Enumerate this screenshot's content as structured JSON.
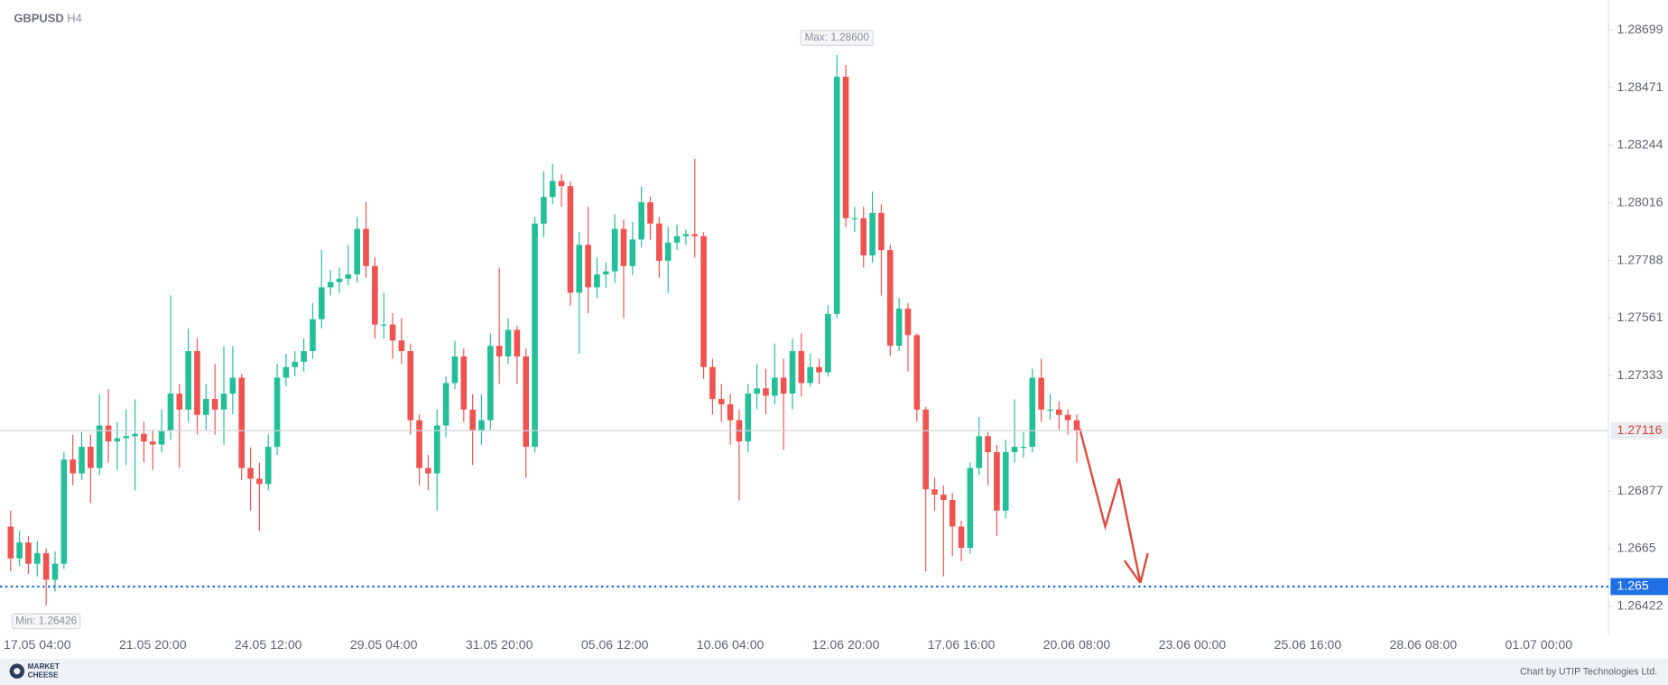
{
  "chart_data": {
    "type": "candlestick",
    "symbol": "GBPUSD",
    "timeframe": "H4",
    "up_color": "#22bf99",
    "down_color": "#ef5350",
    "ylim": [
      1.26317,
      1.28817
    ],
    "yticks": [
      1.28699,
      1.28471,
      1.28244,
      1.28016,
      1.27788,
      1.27561,
      1.27333,
      1.26877,
      1.2665,
      1.26422
    ],
    "current_price": 1.27116,
    "level": 1.265,
    "level_color": "#1f6fe5",
    "max_label": "Max: 1.28600",
    "min_label": "Min: 1.26426",
    "credit": "Chart by UTIP Technologies Ltd.",
    "logo": [
      "MARKET",
      "CHEESE"
    ],
    "categories": [
      null,
      null,
      null,
      "17.05 04:00",
      null,
      null,
      null,
      null,
      null,
      null,
      null,
      null,
      null,
      null,
      null,
      null,
      "21.05 20:00",
      null,
      null,
      null,
      null,
      null,
      null,
      null,
      null,
      null,
      null,
      null,
      null,
      "24.05 12:00",
      null,
      null,
      null,
      null,
      null,
      null,
      null,
      null,
      null,
      null,
      null,
      null,
      "29.05 04:00",
      null,
      null,
      null,
      null,
      null,
      null,
      null,
      null,
      null,
      null,
      null,
      null,
      "31.05 20:00",
      null,
      null,
      null,
      null,
      null,
      null,
      null,
      null,
      null,
      null,
      null,
      null,
      "05.06 12:00",
      null,
      null,
      null,
      null,
      null,
      null,
      null,
      null,
      null,
      null,
      null,
      null,
      "10.06 04:00",
      null,
      null,
      null,
      null,
      null,
      null,
      null,
      null,
      null,
      null,
      null,
      null,
      "12.06 20:00",
      null,
      null,
      null,
      null,
      null,
      null,
      null,
      null,
      null,
      null,
      null,
      null,
      "17.06 16:00",
      null,
      null,
      null,
      null,
      null,
      null,
      null,
      null,
      null,
      null,
      null,
      null,
      "20.06 08:00",
      null,
      null,
      null,
      null,
      null,
      null,
      null,
      null,
      null,
      null,
      null,
      null,
      "23.06 00:00",
      null,
      null,
      null,
      null,
      null,
      null,
      null,
      null,
      null,
      null,
      null,
      null,
      "25.06 16:00",
      null,
      null,
      null,
      null,
      null,
      null,
      null,
      null,
      null,
      null,
      null,
      null,
      "28.06 08:00",
      null,
      null,
      null,
      null,
      null,
      null,
      null,
      null,
      null,
      null,
      null,
      null,
      "01.07 00:00",
      null,
      null,
      null,
      null,
      null,
      null,
      null
    ],
    "open": [
      1.26737,
      1.26611,
      1.26674,
      1.2659,
      1.26632,
      1.26527,
      1.2659,
      1.27002,
      1.26947,
      1.27052,
      1.26968,
      1.27136,
      1.27073,
      1.27086,
      1.27094,
      1.27103,
      1.27073,
      1.27061,
      1.27115,
      1.27262,
      1.27199,
      1.2743,
      1.27178,
      1.27241,
      1.27199,
      1.27262,
      1.27325,
      1.26968,
      1.26926,
      1.26905,
      1.27052,
      1.27325,
      1.27367,
      1.27388,
      1.2743,
      1.27556,
      1.27682,
      1.27703,
      1.27716,
      1.27733,
      1.27913,
      1.27766,
      1.27535,
      1.27535,
      1.27472,
      1.2743,
      1.27157,
      1.26968,
      1.26947,
      1.27136,
      1.27304,
      1.27409,
      1.27199,
      1.27115,
      1.27157,
      1.27451,
      1.27409,
      1.27514,
      1.27409,
      1.27052,
      1.27934,
      1.28039,
      1.28102,
      1.28082,
      1.27661,
      1.2785,
      1.27682,
      1.27733,
      1.27745,
      1.27913,
      1.27766,
      1.27871,
      1.28018,
      1.27934,
      1.27787,
      1.27859,
      1.27884,
      1.27892,
      1.27884,
      1.27367,
      1.27241,
      1.2722,
      1.27157,
      1.27073,
      1.27262,
      1.27283,
      1.27254,
      1.27325,
      1.27262,
      1.2743,
      1.27304,
      1.27367,
      1.27346,
      1.27577,
      1.28514,
      1.27955,
      1.27955,
      1.27808,
      1.27976,
      1.27829,
      1.27451,
      1.27598,
      1.27493,
      1.27199,
      1.26884,
      1.26863,
      1.26842,
      1.26737,
      1.26653,
      1.26968,
      1.27094,
      1.27031,
      1.268,
      1.27031,
      1.27052,
      1.27052,
      1.27325,
      1.27199,
      1.27199,
      1.27178,
      1.27157,
      null,
      null,
      null,
      null,
      null,
      null,
      null,
      null,
      null,
      null,
      null,
      null,
      null,
      null,
      null,
      null,
      null,
      null,
      null,
      null,
      null,
      null,
      null,
      null,
      null,
      null,
      null,
      null,
      null,
      null,
      null,
      null,
      null,
      null,
      null,
      null,
      null,
      null,
      null,
      null,
      null,
      null,
      null,
      null,
      null,
      null,
      null,
      null,
      null,
      null,
      null,
      null,
      null,
      null,
      null,
      null,
      null,
      null,
      null
    ],
    "high": [
      1.268,
      1.2672,
      1.267,
      1.2668,
      1.2665,
      1.2664,
      1.2703,
      1.271,
      1.2711,
      1.271,
      1.2726,
      1.2728,
      1.2715,
      1.272,
      1.2724,
      1.2715,
      1.2712,
      1.272,
      1.2765,
      1.273,
      1.2752,
      1.2748,
      1.273,
      1.2738,
      1.2745,
      1.2745,
      1.2734,
      1.2705,
      1.2699,
      1.271,
      1.2738,
      1.2742,
      1.2743,
      1.2748,
      1.2762,
      1.2783,
      1.2775,
      1.2776,
      1.2785,
      1.2796,
      1.2802,
      1.278,
      1.2766,
      1.2758,
      1.2756,
      1.2746,
      1.2718,
      1.2702,
      1.272,
      1.2733,
      1.2747,
      1.2744,
      1.2726,
      1.2726,
      1.275,
      1.2776,
      1.2756,
      1.2753,
      1.2744,
      1.2796,
      1.2814,
      1.2817,
      1.2813,
      1.281,
      1.279,
      1.28,
      1.278,
      1.2778,
      1.2797,
      1.2795,
      1.2794,
      1.2808,
      1.2804,
      1.2796,
      1.2792,
      1.2793,
      1.2791,
      1.2819,
      1.279,
      1.274,
      1.273,
      1.2726,
      1.272,
      1.273,
      1.2738,
      1.2736,
      1.2746,
      1.274,
      1.2748,
      1.275,
      1.2742,
      1.274,
      1.2761,
      1.286,
      1.2856,
      1.28,
      1.28,
      1.2806,
      1.2801,
      1.2785,
      1.2764,
      1.2762,
      1.275,
      1.2721,
      1.2693,
      1.269,
      1.2687,
      1.2676,
      1.2699,
      1.2717,
      1.2711,
      1.2706,
      1.2708,
      1.2724,
      1.2711,
      1.2736,
      1.274,
      1.2726,
      1.2723,
      1.272,
      1.2718,
      null,
      null,
      null,
      null,
      null,
      null,
      null,
      null,
      null,
      null,
      null,
      null,
      null,
      null,
      null,
      null,
      null,
      null,
      null,
      null,
      null,
      null,
      null,
      null,
      null,
      null,
      null,
      null,
      null,
      null,
      null,
      null,
      null,
      null,
      null,
      null,
      null,
      null,
      null,
      null,
      null,
      null,
      null,
      null,
      null,
      null,
      null,
      null,
      null,
      null,
      null,
      null,
      null,
      null,
      null,
      null,
      null,
      null,
      null
    ],
    "low": [
      1.2656,
      1.2658,
      1.2655,
      1.2654,
      1.26426,
      1.2648,
      1.2657,
      1.269,
      1.2692,
      1.2683,
      1.2694,
      1.2699,
      1.2696,
      1.2698,
      1.2688,
      1.2699,
      1.2696,
      1.2703,
      1.2708,
      1.2697,
      1.2715,
      1.271,
      1.2712,
      1.271,
      1.2706,
      1.2718,
      1.2692,
      1.268,
      1.2672,
      1.2688,
      1.2702,
      1.2729,
      1.2733,
      1.2735,
      1.274,
      1.2752,
      1.2765,
      1.2766,
      1.2769,
      1.277,
      1.2772,
      1.2748,
      1.2748,
      1.274,
      1.2738,
      1.271,
      1.269,
      1.2688,
      1.268,
      1.2709,
      1.2728,
      1.2715,
      1.2698,
      1.2706,
      1.2712,
      1.273,
      1.2738,
      1.273,
      1.2693,
      1.2703,
      1.2788,
      1.2801,
      1.28,
      1.2761,
      1.2742,
      1.2758,
      1.2764,
      1.2768,
      1.277,
      1.2756,
      1.2773,
      1.2784,
      1.2787,
      1.2772,
      1.2766,
      1.2783,
      1.2785,
      1.278,
      1.2732,
      1.2718,
      1.2715,
      1.2706,
      1.2684,
      1.2703,
      1.272,
      1.2718,
      1.2722,
      1.2704,
      1.272,
      1.2725,
      1.2729,
      1.273,
      1.2733,
      1.2756,
      1.2792,
      1.279,
      1.2776,
      1.2778,
      1.2765,
      1.2741,
      1.2743,
      1.2735,
      1.2715,
      1.2656,
      1.268,
      1.2654,
      1.2662,
      1.266,
      1.2663,
      1.2694,
      1.269,
      1.267,
      1.2677,
      1.2699,
      1.2701,
      1.2703,
      1.2715,
      1.2716,
      1.2712,
      1.271,
      1.2699,
      null,
      null,
      null,
      null,
      null,
      null,
      null,
      null,
      null,
      null,
      null,
      null,
      null,
      null,
      null,
      null,
      null,
      null,
      null,
      null,
      null,
      null,
      null,
      null,
      null,
      null,
      null,
      null,
      null,
      null,
      null,
      null,
      null,
      null,
      null,
      null,
      null,
      null,
      null,
      null,
      null,
      null,
      null,
      null,
      null,
      null,
      null,
      null,
      null,
      null,
      null,
      null,
      null,
      null,
      null,
      null,
      null,
      null,
      null
    ],
    "close": [
      1.26611,
      1.26674,
      1.2659,
      1.26632,
      1.26527,
      1.2659,
      1.27002,
      1.26947,
      1.27052,
      1.26968,
      1.27136,
      1.27073,
      1.27086,
      1.27094,
      1.27103,
      1.27073,
      1.27061,
      1.27115,
      1.27262,
      1.27199,
      1.2743,
      1.27178,
      1.27241,
      1.27199,
      1.27262,
      1.27325,
      1.26968,
      1.26926,
      1.26905,
      1.27052,
      1.27325,
      1.27367,
      1.27388,
      1.2743,
      1.27556,
      1.27682,
      1.27703,
      1.27716,
      1.27733,
      1.27913,
      1.27766,
      1.27535,
      1.27535,
      1.27472,
      1.2743,
      1.27157,
      1.26968,
      1.26947,
      1.27136,
      1.27304,
      1.27409,
      1.27199,
      1.27115,
      1.27157,
      1.27451,
      1.27409,
      1.27514,
      1.27409,
      1.27052,
      1.27934,
      1.28039,
      1.28102,
      1.28082,
      1.27661,
      1.2785,
      1.27682,
      1.27733,
      1.27745,
      1.27913,
      1.27766,
      1.27871,
      1.28018,
      1.27934,
      1.27787,
      1.27859,
      1.27884,
      1.27892,
      1.27884,
      1.27367,
      1.27241,
      1.2722,
      1.27157,
      1.27073,
      1.27262,
      1.27283,
      1.27254,
      1.27325,
      1.27262,
      1.2743,
      1.27304,
      1.27367,
      1.27346,
      1.27577,
      1.28514,
      1.27955,
      1.27955,
      1.27808,
      1.27976,
      1.27829,
      1.27451,
      1.27598,
      1.27493,
      1.27199,
      1.26884,
      1.26863,
      1.26842,
      1.26737,
      1.26653,
      1.26968,
      1.27094,
      1.27031,
      1.268,
      1.27031,
      1.27052,
      1.27052,
      1.27325,
      1.27199,
      1.27199,
      1.27178,
      1.27157,
      1.27116,
      null,
      null,
      null,
      null,
      null,
      null,
      null,
      null,
      null,
      null,
      null,
      null,
      null,
      null,
      null,
      null,
      null,
      null,
      null,
      null,
      null,
      null,
      null,
      null,
      null,
      null,
      null,
      null,
      null,
      null,
      null,
      null,
      null,
      null,
      null,
      null,
      null,
      null,
      null,
      null,
      null,
      null,
      null,
      null,
      null,
      null,
      null,
      null,
      null,
      null,
      null,
      null,
      null,
      null,
      null,
      null,
      null,
      null,
      null
    ]
  }
}
